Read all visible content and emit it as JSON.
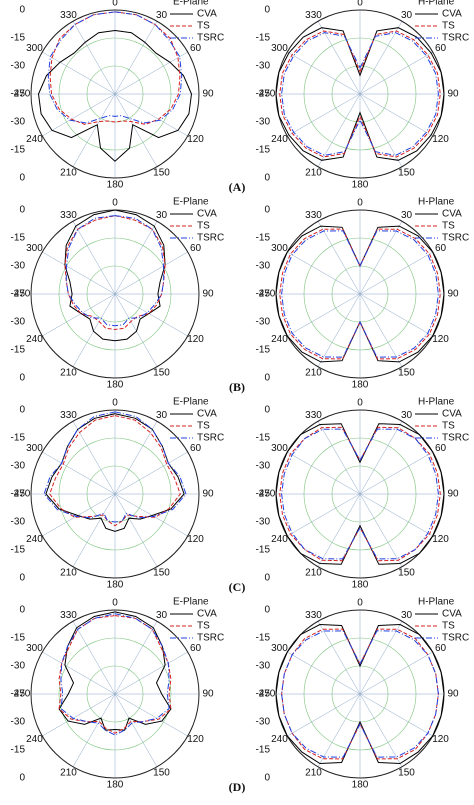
{
  "panel_labels": [
    "(A)",
    "(B)",
    "(C)",
    "(D)"
  ],
  "chart_data": [
    {
      "type": "polar",
      "title": "E-Plane",
      "theta": [
        0,
        15,
        30,
        45,
        60,
        75,
        90,
        105,
        120,
        135,
        150,
        165,
        180,
        195,
        210,
        225,
        240,
        255,
        270,
        285,
        300,
        315,
        330,
        345
      ],
      "rlim": [
        -45,
        0
      ],
      "rticks": [
        -45,
        -30,
        -15,
        0
      ],
      "angle_ticks": [
        0,
        30,
        60,
        90,
        120,
        150,
        180,
        210,
        240,
        270,
        300,
        330
      ],
      "grid": true,
      "legend": "upper right",
      "series": [
        {
          "name": "CVA",
          "color": "#000000",
          "dash": "none",
          "values": [
            -11,
            -11,
            -13,
            -14,
            -11,
            -7,
            -4,
            -4,
            -6,
            -12,
            -26,
            -15,
            -9,
            -15,
            -26,
            -12,
            -6,
            -4,
            -4,
            -7,
            -11,
            -14,
            -13,
            -11
          ]
        },
        {
          "name": "TS",
          "color": "#d62020",
          "dash": "4 2",
          "values": [
            -1,
            -1,
            -2,
            -3,
            -6,
            -9,
            -11,
            -14,
            -18,
            -22,
            -28,
            -30,
            -30,
            -30,
            -28,
            -22,
            -18,
            -14,
            -11,
            -9,
            -6,
            -3,
            -2,
            -1
          ]
        },
        {
          "name": "TSRC",
          "color": "#2040e0",
          "dash": "6 2 1 2",
          "values": [
            -1,
            -1,
            -2,
            -4,
            -5,
            -8,
            -10,
            -13,
            -17,
            -23,
            -30,
            -33,
            -33,
            -33,
            -30,
            -23,
            -17,
            -13,
            -10,
            -8,
            -5,
            -4,
            -2,
            -1
          ]
        }
      ]
    },
    {
      "type": "polar",
      "title": "H-Plane",
      "theta": [
        0,
        15,
        30,
        45,
        60,
        75,
        90,
        105,
        120,
        135,
        150,
        165,
        180,
        195,
        210,
        225,
        240,
        255,
        270,
        285,
        300,
        315,
        330,
        345
      ],
      "rlim": [
        -45,
        0
      ],
      "rticks": [
        -45,
        -30,
        -15,
        0
      ],
      "angle_ticks": [
        0,
        30,
        60,
        90,
        120,
        150,
        180,
        210,
        240,
        270,
        300,
        330
      ],
      "grid": true,
      "legend": "upper right",
      "series": [
        {
          "name": "CVA",
          "color": "#000000",
          "dash": "none",
          "values": [
            -35,
            -10,
            -4,
            -2,
            -1,
            0,
            0,
            0,
            -1,
            -2,
            -4,
            -10,
            -35,
            -10,
            -4,
            -2,
            -1,
            0,
            0,
            0,
            -1,
            -2,
            -4,
            -10
          ]
        },
        {
          "name": "TS",
          "color": "#d62020",
          "dash": "4 2",
          "values": [
            -33,
            -12,
            -6,
            -4,
            -3,
            -2,
            -2,
            -2,
            -3,
            -4,
            -6,
            -12,
            -33,
            -12,
            -6,
            -4,
            -3,
            -2,
            -2,
            -2,
            -3,
            -4,
            -6,
            -12
          ]
        },
        {
          "name": "TSRC",
          "color": "#2040e0",
          "dash": "6 2 1 2",
          "values": [
            -31,
            -13,
            -7,
            -5,
            -4,
            -3,
            -3,
            -3,
            -4,
            -5,
            -7,
            -13,
            -31,
            -13,
            -7,
            -5,
            -4,
            -3,
            -3,
            -3,
            -4,
            -5,
            -7,
            -13
          ]
        }
      ]
    },
    {
      "type": "polar",
      "title": "E-Plane",
      "theta": [
        0,
        15,
        30,
        45,
        60,
        75,
        90,
        105,
        120,
        135,
        150,
        165,
        180,
        195,
        210,
        225,
        240,
        255,
        270,
        285,
        300,
        315,
        330,
        345
      ],
      "rlim": [
        -45,
        0
      ],
      "rticks": [
        -45,
        -30,
        -15,
        0
      ],
      "angle_ticks": [
        0,
        30,
        60,
        90,
        120,
        150,
        180,
        210,
        240,
        270,
        300,
        330
      ],
      "grid": true,
      "legend": "upper right",
      "series": [
        {
          "name": "CVA",
          "color": "#000000",
          "dash": "none",
          "values": [
            0,
            -1,
            -3,
            -8,
            -14,
            -20,
            -22,
            -20,
            -24,
            -26,
            -22,
            -20,
            -20,
            -20,
            -22,
            -26,
            -24,
            -20,
            -22,
            -20,
            -14,
            -8,
            -3,
            -1
          ]
        },
        {
          "name": "TS",
          "color": "#d62020",
          "dash": "4 2",
          "values": [
            -3,
            -4,
            -5,
            -9,
            -14,
            -18,
            -20,
            -22,
            -24,
            -28,
            -28,
            -26,
            -26,
            -26,
            -28,
            -28,
            -24,
            -22,
            -20,
            -18,
            -14,
            -9,
            -5,
            -4
          ]
        },
        {
          "name": "TSRC",
          "color": "#2040e0",
          "dash": "6 2 1 2",
          "values": [
            -3,
            -3,
            -5,
            -10,
            -15,
            -18,
            -20,
            -23,
            -25,
            -27,
            -30,
            -28,
            -28,
            -28,
            -30,
            -27,
            -25,
            -23,
            -20,
            -18,
            -15,
            -10,
            -5,
            -3
          ]
        }
      ]
    },
    {
      "type": "polar",
      "title": "H-Plane",
      "theta": [
        0,
        15,
        30,
        45,
        60,
        75,
        90,
        105,
        120,
        135,
        150,
        165,
        180,
        195,
        210,
        225,
        240,
        255,
        270,
        285,
        300,
        315,
        330,
        345
      ],
      "rlim": [
        -45,
        0
      ],
      "rticks": [
        -45,
        -30,
        -15,
        0
      ],
      "angle_ticks": [
        0,
        30,
        60,
        90,
        120,
        150,
        180,
        210,
        240,
        270,
        300,
        330
      ],
      "grid": true,
      "legend": "upper right",
      "series": [
        {
          "name": "CVA",
          "color": "#000000",
          "dash": "none",
          "values": [
            -30,
            -8,
            -3,
            -1,
            0,
            0,
            0,
            0,
            0,
            -1,
            -3,
            -8,
            -30,
            -8,
            -3,
            -1,
            0,
            0,
            0,
            0,
            0,
            -1,
            -3,
            -8
          ]
        },
        {
          "name": "TS",
          "color": "#d62020",
          "dash": "4 2",
          "values": [
            -30,
            -9,
            -5,
            -3,
            -2,
            -2,
            -2,
            -2,
            -2,
            -3,
            -5,
            -9,
            -30,
            -9,
            -5,
            -3,
            -2,
            -2,
            -2,
            -2,
            -2,
            -3,
            -5,
            -9
          ]
        },
        {
          "name": "TSRC",
          "color": "#2040e0",
          "dash": "6 2 1 2",
          "values": [
            -30,
            -10,
            -6,
            -4,
            -3,
            -3,
            -3,
            -3,
            -3,
            -4,
            -6,
            -10,
            -30,
            -10,
            -6,
            -4,
            -3,
            -3,
            -3,
            -3,
            -3,
            -4,
            -6,
            -10
          ]
        }
      ]
    },
    {
      "type": "polar",
      "title": "E-Plane",
      "theta": [
        0,
        15,
        30,
        45,
        60,
        75,
        90,
        105,
        120,
        135,
        150,
        165,
        180,
        195,
        210,
        225,
        240,
        255,
        270,
        285,
        300,
        315,
        330,
        345
      ],
      "rlim": [
        -45,
        0
      ],
      "rticks": [
        -45,
        -30,
        -15,
        0
      ],
      "angle_ticks": [
        0,
        30,
        60,
        90,
        120,
        150,
        180,
        210,
        240,
        270,
        300,
        330
      ],
      "grid": true,
      "legend": "upper right",
      "series": [
        {
          "name": "CVA",
          "color": "#000000",
          "dash": "none",
          "values": [
            -2,
            -3,
            -5,
            -9,
            -12,
            -10,
            -8,
            -14,
            -22,
            -26,
            -30,
            -26,
            -25,
            -26,
            -30,
            -26,
            -22,
            -14,
            -8,
            -10,
            -12,
            -9,
            -5,
            -3
          ]
        },
        {
          "name": "TS",
          "color": "#d62020",
          "dash": "4 2",
          "values": [
            -3,
            -4,
            -7,
            -10,
            -13,
            -12,
            -10,
            -15,
            -20,
            -28,
            -32,
            -30,
            -28,
            -30,
            -32,
            -28,
            -20,
            -15,
            -10,
            -12,
            -13,
            -10,
            -7,
            -4
          ]
        },
        {
          "name": "TSRC",
          "color": "#2040e0",
          "dash": "6 2 1 2",
          "values": [
            -1,
            -2,
            -5,
            -9,
            -12,
            -9,
            -7,
            -13,
            -21,
            -27,
            -33,
            -30,
            -30,
            -30,
            -33,
            -27,
            -21,
            -13,
            -7,
            -9,
            -12,
            -9,
            -5,
            -2
          ]
        }
      ]
    },
    {
      "type": "polar",
      "title": "H-Plane",
      "theta": [
        0,
        15,
        30,
        45,
        60,
        75,
        90,
        105,
        120,
        135,
        150,
        165,
        180,
        195,
        210,
        225,
        240,
        255,
        270,
        285,
        300,
        315,
        330,
        345
      ],
      "rlim": [
        -45,
        0
      ],
      "rticks": [
        -45,
        -30,
        -15,
        0
      ],
      "angle_ticks": [
        0,
        30,
        60,
        90,
        120,
        150,
        180,
        210,
        240,
        270,
        300,
        330
      ],
      "grid": true,
      "legend": "upper right",
      "series": [
        {
          "name": "CVA",
          "color": "#000000",
          "dash": "none",
          "values": [
            -28,
            -6,
            -2,
            0,
            0,
            0,
            0,
            0,
            0,
            0,
            -2,
            -6,
            -28,
            -6,
            -2,
            0,
            0,
            0,
            0,
            0,
            0,
            0,
            -2,
            -6
          ]
        },
        {
          "name": "TS",
          "color": "#d62020",
          "dash": "4 2",
          "values": [
            -27,
            -8,
            -4,
            -3,
            -2,
            -2,
            -2,
            -2,
            -2,
            -3,
            -4,
            -8,
            -27,
            -8,
            -4,
            -3,
            -2,
            -2,
            -2,
            -2,
            -2,
            -3,
            -4,
            -8
          ]
        },
        {
          "name": "TSRC",
          "color": "#2040e0",
          "dash": "6 2 1 2",
          "values": [
            -27,
            -9,
            -5,
            -3,
            -3,
            -3,
            -3,
            -3,
            -3,
            -3,
            -5,
            -9,
            -27,
            -9,
            -5,
            -3,
            -3,
            -3,
            -3,
            -3,
            -3,
            -3,
            -5,
            -9
          ]
        }
      ]
    },
    {
      "type": "polar",
      "title": "E-Plane",
      "theta": [
        0,
        15,
        30,
        45,
        60,
        75,
        90,
        105,
        120,
        135,
        150,
        165,
        180,
        195,
        210,
        225,
        240,
        255,
        270,
        285,
        300,
        315,
        330,
        345
      ],
      "rlim": [
        -45,
        0
      ],
      "rticks": [
        -45,
        -30,
        -15,
        0
      ],
      "angle_ticks": [
        0,
        30,
        60,
        90,
        120,
        150,
        180,
        210,
        240,
        270,
        300,
        330
      ],
      "grid": true,
      "legend": "upper right",
      "series": [
        {
          "name": "CVA",
          "color": "#000000",
          "dash": "none",
          "values": [
            -1,
            -2,
            -4,
            -9,
            -14,
            -22,
            -20,
            -14,
            -16,
            -22,
            -30,
            -25,
            -26,
            -25,
            -30,
            -22,
            -16,
            -14,
            -20,
            -22,
            -14,
            -9,
            -4,
            -2
          ]
        },
        {
          "name": "TS",
          "color": "#d62020",
          "dash": "4 2",
          "values": [
            -3,
            -3,
            -5,
            -10,
            -12,
            -14,
            -16,
            -14,
            -18,
            -24,
            -28,
            -26,
            -24,
            -26,
            -28,
            -24,
            -18,
            -14,
            -16,
            -14,
            -12,
            -10,
            -5,
            -3
          ]
        },
        {
          "name": "TSRC",
          "color": "#2040e0",
          "dash": "6 2 1 2",
          "values": [
            -2,
            -3,
            -5,
            -9,
            -12,
            -15,
            -17,
            -15,
            -19,
            -24,
            -27,
            -25,
            -23,
            -25,
            -27,
            -24,
            -19,
            -15,
            -17,
            -15,
            -12,
            -9,
            -5,
            -3
          ]
        }
      ]
    },
    {
      "type": "polar",
      "title": "H-Plane",
      "theta": [
        0,
        15,
        30,
        45,
        60,
        75,
        90,
        105,
        120,
        135,
        150,
        165,
        180,
        195,
        210,
        225,
        240,
        255,
        270,
        285,
        300,
        315,
        330,
        345
      ],
      "rlim": [
        -45,
        0
      ],
      "rticks": [
        -45,
        -30,
        -15,
        0
      ],
      "angle_ticks": [
        0,
        30,
        60,
        90,
        120,
        150,
        180,
        210,
        240,
        270,
        300,
        330
      ],
      "grid": true,
      "legend": "upper right",
      "series": [
        {
          "name": "CVA",
          "color": "#000000",
          "dash": "none",
          "values": [
            -30,
            -7,
            -2,
            0,
            0,
            0,
            0,
            0,
            0,
            -1,
            -2,
            -7,
            -30,
            -7,
            -2,
            -1,
            0,
            0,
            0,
            0,
            0,
            0,
            -2,
            -7
          ]
        },
        {
          "name": "TS",
          "color": "#d62020",
          "dash": "4 2",
          "values": [
            -29,
            -9,
            -5,
            -3,
            -3,
            -3,
            -3,
            -3,
            -3,
            -3,
            -5,
            -9,
            -29,
            -9,
            -5,
            -3,
            -3,
            -3,
            -3,
            -3,
            -3,
            -3,
            -5,
            -9
          ]
        },
        {
          "name": "TSRC",
          "color": "#2040e0",
          "dash": "6 2 1 2",
          "values": [
            -29,
            -10,
            -6,
            -4,
            -3,
            -3,
            -3,
            -3,
            -3,
            -4,
            -6,
            -10,
            -29,
            -10,
            -6,
            -4,
            -3,
            -3,
            -3,
            -3,
            -3,
            -4,
            -6,
            -10
          ]
        }
      ]
    }
  ]
}
